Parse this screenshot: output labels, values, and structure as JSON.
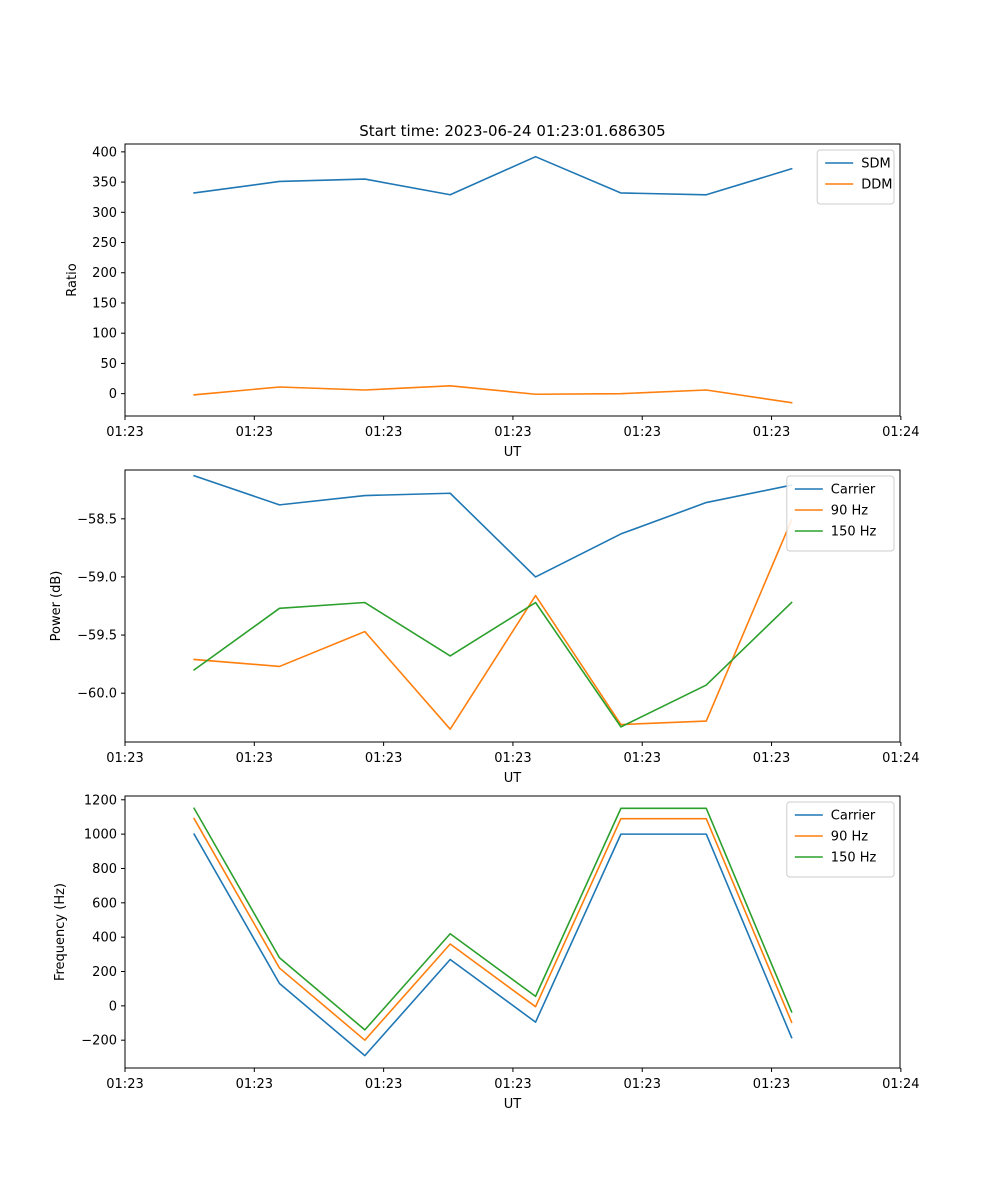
{
  "figure": {
    "title": "Start time: 2023-06-24 01:23:01.686305"
  },
  "chart_data": [
    {
      "type": "line",
      "xlabel": "UT",
      "ylabel": "Ratio",
      "x": [
        1,
        2,
        3,
        4,
        5,
        6,
        7,
        8
      ],
      "xlim": [
        0.19,
        9.27
      ],
      "x_ticks": [
        {
          "x": 0.19,
          "label": "01:23"
        },
        {
          "x": 1.705,
          "label": "01:23"
        },
        {
          "x": 3.22,
          "label": "01:23"
        },
        {
          "x": 4.735,
          "label": "01:23"
        },
        {
          "x": 6.25,
          "label": "01:23"
        },
        {
          "x": 7.765,
          "label": "01:23"
        },
        {
          "x": 9.28,
          "label": "01:24"
        }
      ],
      "ylim": [
        -37,
        413
      ],
      "y_ticks": [
        0,
        50,
        100,
        150,
        200,
        250,
        300,
        350,
        400
      ],
      "y_tick_labels": [
        "0",
        "50",
        "100",
        "150",
        "200",
        "250",
        "300",
        "350",
        "400"
      ],
      "legend": "top-right",
      "series": [
        {
          "name": "SDM",
          "color": "#1f77b4",
          "values": [
            332,
            351,
            355,
            329,
            392,
            332,
            329,
            372
          ]
        },
        {
          "name": "DDM",
          "color": "#ff7f0e",
          "values": [
            -2,
            11,
            6,
            13,
            -1,
            0,
            6,
            -15
          ]
        }
      ]
    },
    {
      "type": "line",
      "xlabel": "UT",
      "ylabel": "Power (dB)",
      "x": [
        1,
        2,
        3,
        4,
        5,
        6,
        7,
        8
      ],
      "xlim": [
        0.19,
        9.27
      ],
      "x_ticks": [
        {
          "x": 0.19,
          "label": "01:23"
        },
        {
          "x": 1.705,
          "label": "01:23"
        },
        {
          "x": 3.22,
          "label": "01:23"
        },
        {
          "x": 4.735,
          "label": "01:23"
        },
        {
          "x": 6.25,
          "label": "01:23"
        },
        {
          "x": 7.765,
          "label": "01:23"
        },
        {
          "x": 9.28,
          "label": "01:24"
        }
      ],
      "ylim": [
        -60.42,
        -58.08
      ],
      "y_ticks": [
        -58.5,
        -59.0,
        -59.5,
        -60.0
      ],
      "y_tick_labels": [
        "−58.5",
        "−59.0",
        "−59.5",
        "−60.0"
      ],
      "legend": "top-right",
      "series": [
        {
          "name": "Carrier",
          "color": "#1f77b4",
          "values": [
            -58.13,
            -58.38,
            -58.3,
            -58.28,
            -59.0,
            -58.63,
            -58.36,
            -58.21
          ]
        },
        {
          "name": "90 Hz",
          "color": "#ff7f0e",
          "values": [
            -59.71,
            -59.77,
            -59.47,
            -60.31,
            -59.16,
            -60.27,
            -60.24,
            -58.51
          ]
        },
        {
          "name": "150 Hz",
          "color": "#2ca02c",
          "values": [
            -59.8,
            -59.27,
            -59.22,
            -59.68,
            -59.22,
            -60.29,
            -59.93,
            -59.22
          ]
        }
      ]
    },
    {
      "type": "line",
      "xlabel": "UT",
      "ylabel": "Frequency (Hz)",
      "x": [
        1,
        2,
        3,
        4,
        5,
        6,
        7,
        8
      ],
      "xlim": [
        0.19,
        9.27
      ],
      "x_ticks": [
        {
          "x": 0.19,
          "label": "01:23"
        },
        {
          "x": 1.705,
          "label": "01:23"
        },
        {
          "x": 3.22,
          "label": "01:23"
        },
        {
          "x": 4.735,
          "label": "01:23"
        },
        {
          "x": 6.25,
          "label": "01:23"
        },
        {
          "x": 7.765,
          "label": "01:23"
        },
        {
          "x": 9.28,
          "label": "01:24"
        }
      ],
      "ylim": [
        -362,
        1222
      ],
      "y_ticks": [
        -200,
        0,
        200,
        400,
        600,
        800,
        1000,
        1200
      ],
      "y_tick_labels": [
        "−200",
        "0",
        "200",
        "400",
        "600",
        "800",
        "1000",
        "1200"
      ],
      "legend": "top-right",
      "series": [
        {
          "name": "Carrier",
          "color": "#1f77b4",
          "values": [
            1000,
            130,
            -290,
            270,
            -95,
            1000,
            1000,
            -185
          ]
        },
        {
          "name": "90 Hz",
          "color": "#ff7f0e",
          "values": [
            1090,
            220,
            -200,
            360,
            -5,
            1090,
            1090,
            -95
          ]
        },
        {
          "name": "150 Hz",
          "color": "#2ca02c",
          "values": [
            1150,
            280,
            -140,
            420,
            55,
            1150,
            1150,
            -35
          ]
        }
      ]
    }
  ]
}
